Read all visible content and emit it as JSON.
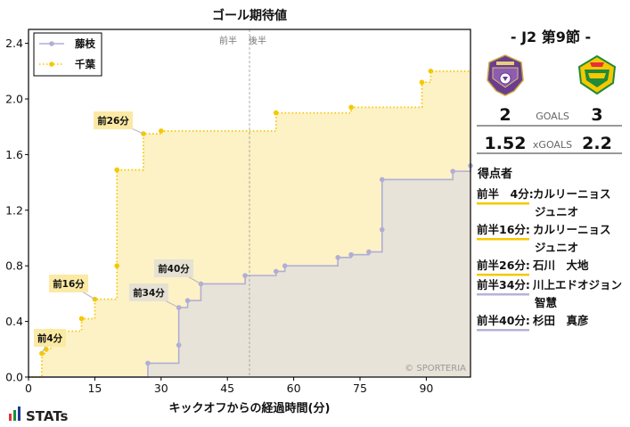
{
  "chart_data": {
    "type": "line",
    "title": "ゴール期待値",
    "xlabel": "キックオフからの経過時間(分)",
    "ylabel": "",
    "xlim": [
      0,
      100
    ],
    "ylim": [
      0,
      2.5
    ],
    "x_ticks": [
      0,
      15,
      30,
      45,
      60,
      75,
      90
    ],
    "y_ticks": [
      0.0,
      0.4,
      0.8,
      1.2,
      1.6,
      2.0,
      2.4
    ],
    "halftime_labels": [
      "前半",
      "後半"
    ],
    "halftime_x": 50,
    "legend": {
      "position": "top-left"
    },
    "watermark": "© SPORTERIA",
    "series": [
      {
        "name": "藤枝",
        "color": "#b0aed6",
        "fill": "#e8e3d8",
        "style": "solid",
        "points": [
          [
            0,
            0
          ],
          [
            27,
            0
          ],
          [
            27,
            0.1
          ],
          [
            34,
            0.1
          ],
          [
            34,
            0.23
          ],
          [
            34,
            0.5
          ],
          [
            36,
            0.5
          ],
          [
            36,
            0.55
          ],
          [
            39,
            0.55
          ],
          [
            39,
            0.67
          ],
          [
            49,
            0.67
          ],
          [
            49,
            0.73
          ],
          [
            56,
            0.73
          ],
          [
            56,
            0.76
          ],
          [
            58,
            0.76
          ],
          [
            58,
            0.8
          ],
          [
            70,
            0.8
          ],
          [
            70,
            0.86
          ],
          [
            73,
            0.86
          ],
          [
            73,
            0.88
          ],
          [
            77,
            0.88
          ],
          [
            77,
            0.9
          ],
          [
            80,
            0.9
          ],
          [
            80,
            1.06
          ],
          [
            80,
            1.42
          ],
          [
            96,
            1.42
          ],
          [
            96,
            1.48
          ],
          [
            100,
            1.48
          ],
          [
            100,
            1.52
          ]
        ],
        "markers": [
          [
            27,
            0.1
          ],
          [
            34,
            0.23
          ],
          [
            34,
            0.5
          ],
          [
            36,
            0.55
          ],
          [
            39,
            0.67
          ],
          [
            49,
            0.73
          ],
          [
            56,
            0.76
          ],
          [
            58,
            0.8
          ],
          [
            70,
            0.86
          ],
          [
            73,
            0.88
          ],
          [
            77,
            0.9
          ],
          [
            80,
            1.06
          ],
          [
            80,
            1.42
          ],
          [
            96,
            1.48
          ],
          [
            100,
            1.52
          ]
        ]
      },
      {
        "name": "千葉",
        "color": "#f5c800",
        "fill": "#fdf1c6",
        "style": "dotted",
        "points": [
          [
            0,
            0
          ],
          [
            3,
            0
          ],
          [
            3,
            0.17
          ],
          [
            4,
            0.17
          ],
          [
            4,
            0.2
          ],
          [
            5,
            0.2
          ],
          [
            5,
            0.33
          ],
          [
            12,
            0.33
          ],
          [
            12,
            0.42
          ],
          [
            15,
            0.42
          ],
          [
            15,
            0.56
          ],
          [
            20,
            0.56
          ],
          [
            20,
            0.8
          ],
          [
            20,
            1.49
          ],
          [
            26,
            1.49
          ],
          [
            26,
            1.75
          ],
          [
            30,
            1.75
          ],
          [
            30,
            1.77
          ],
          [
            56,
            1.77
          ],
          [
            56,
            1.9
          ],
          [
            73,
            1.9
          ],
          [
            73,
            1.94
          ],
          [
            89,
            1.94
          ],
          [
            89,
            2.12
          ],
          [
            91,
            2.12
          ],
          [
            91,
            2.2
          ],
          [
            100,
            2.2
          ]
        ],
        "markers": [
          [
            3,
            0.17
          ],
          [
            4,
            0.2
          ],
          [
            5,
            0.33
          ],
          [
            12,
            0.42
          ],
          [
            15,
            0.56
          ],
          [
            20,
            0.8
          ],
          [
            20,
            1.49
          ],
          [
            26,
            1.75
          ],
          [
            30,
            1.77
          ],
          [
            56,
            1.9
          ],
          [
            73,
            1.94
          ],
          [
            89,
            2.12
          ],
          [
            91,
            2.2
          ]
        ]
      }
    ],
    "annotations": [
      {
        "text": "前4分",
        "x": 3,
        "y": 0.17,
        "team": "千葉"
      },
      {
        "text": "前16分",
        "x": 15,
        "y": 0.56,
        "team": "千葉"
      },
      {
        "text": "前26分",
        "x": 26,
        "y": 1.75,
        "team": "千葉"
      },
      {
        "text": "前34分",
        "x": 34,
        "y": 0.5,
        "team": "藤枝"
      },
      {
        "text": "前40分",
        "x": 39,
        "y": 0.67,
        "team": "藤枝"
      }
    ]
  },
  "match": {
    "title": "- J2 第9節 -",
    "home_logo": "fujieda-crest",
    "away_logo": "chiba-crest",
    "home_goals": "2",
    "away_goals": "3",
    "goals_label": "GOALS",
    "home_xg": "1.52",
    "away_xg": "2.2",
    "xg_label": "xGOALS"
  },
  "scorers": {
    "heading": "得点者",
    "items": [
      {
        "time": "前半　4分:",
        "name": "カルリーニョス\nジュニオ",
        "team": "千葉"
      },
      {
        "time": "前半16分:",
        "name": "カルリーニョス\nジュニオ",
        "team": "千葉"
      },
      {
        "time": "前半26分:",
        "name": "石川　大地",
        "team": "千葉"
      },
      {
        "time": "前半34分:",
        "name": "川上エドオジョン\n智慧",
        "team": "藤枝"
      },
      {
        "time": "前半40分:",
        "name": "杉田　真彦",
        "team": "藤枝"
      }
    ]
  },
  "brand": {
    "text": "STATs",
    "bar_colors": [
      "#e8303a",
      "#1a8f3a",
      "#1b3a8f"
    ]
  }
}
